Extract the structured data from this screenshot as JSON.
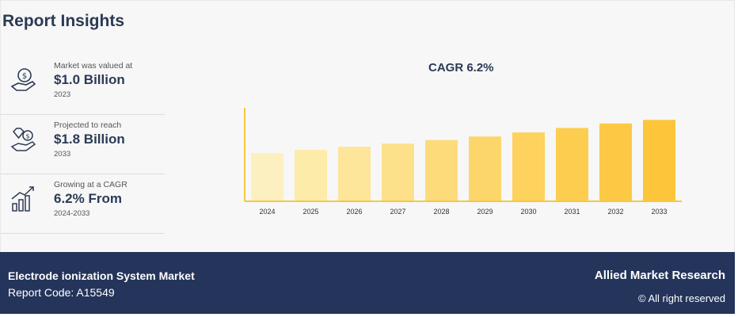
{
  "header": {
    "title": "Report Insights"
  },
  "stats": [
    {
      "label": "Market was valued at",
      "value": "$1.0 Billion",
      "sub": "2023",
      "icon": "money-hand-icon"
    },
    {
      "label": "Projected to reach",
      "value": "$1.8 Billion",
      "sub": "2033",
      "icon": "diamond-coin-hand-icon"
    },
    {
      "label": "Growing at a CAGR",
      "value": "6.2% From",
      "sub": "2024-2033",
      "icon": "growth-bars-icon"
    }
  ],
  "chart_title": "CAGR 6.2%",
  "chart_data": {
    "type": "bar",
    "title": "CAGR 6.2%",
    "categories": [
      "2024",
      "2025",
      "2026",
      "2027",
      "2028",
      "2029",
      "2030",
      "2031",
      "2032",
      "2033"
    ],
    "values": [
      1.06,
      1.13,
      1.2,
      1.27,
      1.35,
      1.43,
      1.52,
      1.62,
      1.72,
      1.8
    ],
    "ylim": [
      0,
      2.0
    ],
    "grid": false,
    "legend": "none",
    "bar_colors": [
      "#fdf0c0",
      "#fdeba9",
      "#fde599",
      "#fde08a",
      "#fddb7a",
      "#fdd66b",
      "#fdd25d",
      "#fdcd4f",
      "#fdc944",
      "#fdc539"
    ],
    "axis_color": "#f5c842"
  },
  "footer": {
    "market": "Electrode ionization System Market",
    "code": "Report Code: A15549",
    "brand": "Allied Market Research",
    "rights": "© All right reserved"
  },
  "colors": {
    "navy": "#24345a",
    "text": "#2b3a55",
    "accent": "#f5c842"
  }
}
